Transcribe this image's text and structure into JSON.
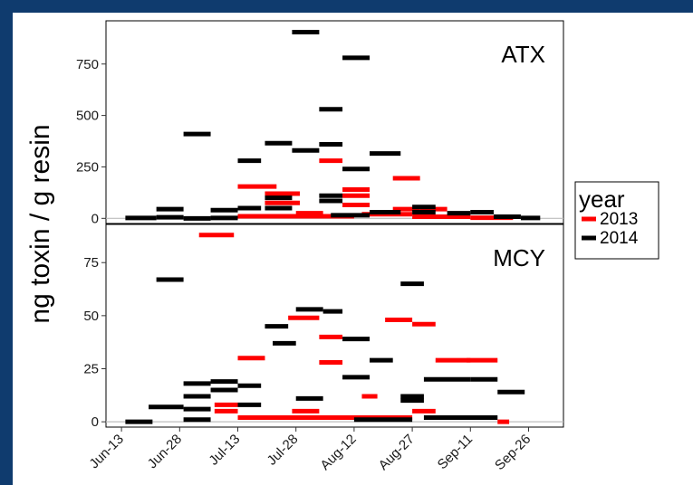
{
  "chart_data": {
    "type": "scatter",
    "title": "",
    "xlabel": "",
    "ylabel": "ng toxin / g resin",
    "x_ticks": [
      "Jun-13",
      "Jun-28",
      "Jul-13",
      "Jul-28",
      "Aug-12",
      "Aug-27",
      "Sep-11",
      "Sep-26"
    ],
    "legend": {
      "title": "year",
      "placement": "right",
      "entries": [
        {
          "name": "2013",
          "color": "#ff0000"
        },
        {
          "name": "2014",
          "color": "#000000"
        }
      ]
    },
    "panels": [
      {
        "label": "ATX",
        "ylim": [
          -25,
          960
        ],
        "y_ticks": [
          0,
          250,
          500,
          750
        ],
        "series": [
          {
            "name": "2013",
            "color": "#ff0000",
            "segments": [
              {
                "start": "Jul-13",
                "end": "Jul-23",
                "value": 155
              },
              {
                "start": "Jul-20",
                "end": "Jul-29",
                "value": 120
              },
              {
                "start": "Jul-20",
                "end": "Jul-29",
                "value": 75
              },
              {
                "start": "Jul-28",
                "end": "Aug-04",
                "value": 25
              },
              {
                "start": "Aug-03",
                "end": "Aug-09",
                "value": 280
              },
              {
                "start": "Aug-09",
                "end": "Aug-16",
                "value": 140
              },
              {
                "start": "Aug-09",
                "end": "Aug-16",
                "value": 110
              },
              {
                "start": "Aug-09",
                "end": "Aug-16",
                "value": 65
              },
              {
                "start": "Aug-22",
                "end": "Aug-29",
                "value": 195
              },
              {
                "start": "Aug-22",
                "end": "Aug-29",
                "value": 45
              },
              {
                "start": "Aug-29",
                "end": "Sep-05",
                "value": 45
              },
              {
                "start": "Jul-13",
                "end": "Aug-12",
                "value": 10
              },
              {
                "start": "Aug-14",
                "end": "Aug-27",
                "value": 20
              },
              {
                "start": "Aug-27",
                "end": "Sep-11",
                "value": 8
              },
              {
                "start": "Sep-11",
                "end": "Sep-22",
                "value": 3
              }
            ]
          },
          {
            "name": "2014",
            "color": "#000000",
            "segments": [
              {
                "start": "Jun-14",
                "end": "Jun-22",
                "value": 2
              },
              {
                "start": "Jun-22",
                "end": "Jun-29",
                "value": 45
              },
              {
                "start": "Jun-22",
                "end": "Jun-29",
                "value": 5
              },
              {
                "start": "Jun-29",
                "end": "Jul-06",
                "value": 410
              },
              {
                "start": "Jun-29",
                "end": "Jul-06",
                "value": 0
              },
              {
                "start": "Jul-06",
                "end": "Jul-13",
                "value": 40
              },
              {
                "start": "Jul-06",
                "end": "Jul-13",
                "value": 2
              },
              {
                "start": "Jul-13",
                "end": "Jul-19",
                "value": 280
              },
              {
                "start": "Jul-13",
                "end": "Jul-19",
                "value": 50
              },
              {
                "start": "Jul-20",
                "end": "Jul-27",
                "value": 365
              },
              {
                "start": "Jul-20",
                "end": "Jul-27",
                "value": 100
              },
              {
                "start": "Jul-20",
                "end": "Jul-27",
                "value": 50
              },
              {
                "start": "Jul-27",
                "end": "Aug-03",
                "value": 905
              },
              {
                "start": "Jul-27",
                "end": "Aug-03",
                "value": 330
              },
              {
                "start": "Aug-03",
                "end": "Aug-09",
                "value": 530
              },
              {
                "start": "Aug-03",
                "end": "Aug-09",
                "value": 360
              },
              {
                "start": "Aug-03",
                "end": "Aug-09",
                "value": 110
              },
              {
                "start": "Aug-03",
                "end": "Aug-09",
                "value": 85
              },
              {
                "start": "Aug-09",
                "end": "Aug-16",
                "value": 780
              },
              {
                "start": "Aug-09",
                "end": "Aug-16",
                "value": 240
              },
              {
                "start": "Aug-16",
                "end": "Aug-24",
                "value": 315
              },
              {
                "start": "Aug-16",
                "end": "Aug-24",
                "value": 30
              },
              {
                "start": "Aug-27",
                "end": "Sep-02",
                "value": 55
              },
              {
                "start": "Aug-27",
                "end": "Sep-02",
                "value": 30
              },
              {
                "start": "Sep-05",
                "end": "Sep-11",
                "value": 25
              },
              {
                "start": "Sep-11",
                "end": "Sep-17",
                "value": 30
              },
              {
                "start": "Sep-17",
                "end": "Sep-24",
                "value": 8
              },
              {
                "start": "Sep-24",
                "end": "Sep-29",
                "value": 2
              },
              {
                "start": "Aug-06",
                "end": "Aug-16",
                "value": 15
              }
            ]
          }
        ]
      },
      {
        "label": "MCY",
        "ylim": [
          -2.5,
          93
        ],
        "y_ticks": [
          0,
          25,
          50,
          75
        ],
        "series": [
          {
            "name": "2013",
            "color": "#ff0000",
            "segments": [
              {
                "start": "Jul-03",
                "end": "Jul-12",
                "value": 88
              },
              {
                "start": "Jul-07",
                "end": "Jul-13",
                "value": 8
              },
              {
                "start": "Jul-07",
                "end": "Jul-13",
                "value": 5
              },
              {
                "start": "Jul-13",
                "end": "Jul-20",
                "value": 30
              },
              {
                "start": "Jul-26",
                "end": "Aug-03",
                "value": 49
              },
              {
                "start": "Jul-27",
                "end": "Aug-03",
                "value": 5
              },
              {
                "start": "Aug-03",
                "end": "Aug-09",
                "value": 40
              },
              {
                "start": "Aug-03",
                "end": "Aug-09",
                "value": 28
              },
              {
                "start": "Aug-14",
                "end": "Aug-18",
                "value": 12
              },
              {
                "start": "Aug-20",
                "end": "Aug-27",
                "value": 48
              },
              {
                "start": "Aug-27",
                "end": "Sep-02",
                "value": 46
              },
              {
                "start": "Aug-27",
                "end": "Sep-02",
                "value": 5
              },
              {
                "start": "Sep-02",
                "end": "Sep-11",
                "value": 29
              },
              {
                "start": "Sep-10",
                "end": "Sep-18",
                "value": 29
              },
              {
                "start": "Jul-13",
                "end": "Aug-27",
                "value": 2
              },
              {
                "start": "Sep-18",
                "end": "Sep-21",
                "value": 0
              }
            ]
          },
          {
            "name": "2014",
            "color": "#000000",
            "segments": [
              {
                "start": "Jun-14",
                "end": "Jun-21",
                "value": 0
              },
              {
                "start": "Jun-20",
                "end": "Jun-29",
                "value": 7
              },
              {
                "start": "Jun-22",
                "end": "Jun-29",
                "value": 67
              },
              {
                "start": "Jun-29",
                "end": "Jul-06",
                "value": 18
              },
              {
                "start": "Jun-29",
                "end": "Jul-06",
                "value": 12
              },
              {
                "start": "Jun-29",
                "end": "Jul-06",
                "value": 6
              },
              {
                "start": "Jun-29",
                "end": "Jul-06",
                "value": 1
              },
              {
                "start": "Jul-06",
                "end": "Jul-13",
                "value": 19
              },
              {
                "start": "Jul-06",
                "end": "Jul-13",
                "value": 15
              },
              {
                "start": "Jul-13",
                "end": "Jul-19",
                "value": 17
              },
              {
                "start": "Jul-13",
                "end": "Jul-19",
                "value": 8
              },
              {
                "start": "Jul-20",
                "end": "Jul-26",
                "value": 45
              },
              {
                "start": "Jul-22",
                "end": "Jul-28",
                "value": 37
              },
              {
                "start": "Jul-28",
                "end": "Aug-04",
                "value": 53
              },
              {
                "start": "Jul-28",
                "end": "Aug-04",
                "value": 11
              },
              {
                "start": "Aug-04",
                "end": "Aug-09",
                "value": 52
              },
              {
                "start": "Aug-09",
                "end": "Aug-16",
                "value": 39
              },
              {
                "start": "Aug-09",
                "end": "Aug-16",
                "value": 21
              },
              {
                "start": "Aug-16",
                "end": "Aug-22",
                "value": 29
              },
              {
                "start": "Aug-24",
                "end": "Aug-30",
                "value": 65
              },
              {
                "start": "Aug-24",
                "end": "Aug-30",
                "value": 12
              },
              {
                "start": "Aug-24",
                "end": "Aug-30",
                "value": 10
              },
              {
                "start": "Aug-30",
                "end": "Sep-11",
                "value": 20
              },
              {
                "start": "Sep-11",
                "end": "Sep-18",
                "value": 20
              },
              {
                "start": "Sep-18",
                "end": "Sep-25",
                "value": 14
              },
              {
                "start": "Aug-30",
                "end": "Sep-18",
                "value": 2
              },
              {
                "start": "Aug-12",
                "end": "Aug-27",
                "value": 1
              }
            ]
          }
        ]
      }
    ]
  }
}
